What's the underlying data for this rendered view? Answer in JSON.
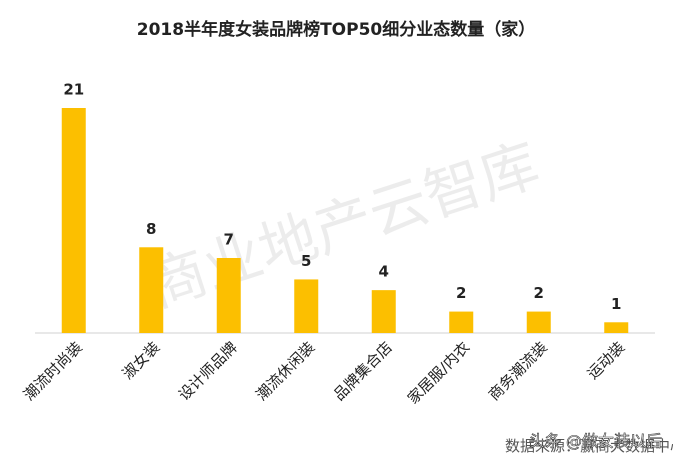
{
  "chart_data": {
    "type": "bar",
    "title": "2018半年度女装品牌榜TOP50细分业态数量（家）",
    "categories": [
      "潮流时尚装",
      "淑女装",
      "设计师品牌",
      "潮流休闲装",
      "品牌集合店",
      "家居服/内衣",
      "商务潮流装",
      "运动装"
    ],
    "values": [
      21,
      8,
      7,
      5,
      4,
      2,
      2,
      1
    ],
    "color": "#fcbf00",
    "source": "数据来源：赢商大数据中心",
    "watermark": "商业地产云智库",
    "credit": "头条 @做女装以后"
  }
}
